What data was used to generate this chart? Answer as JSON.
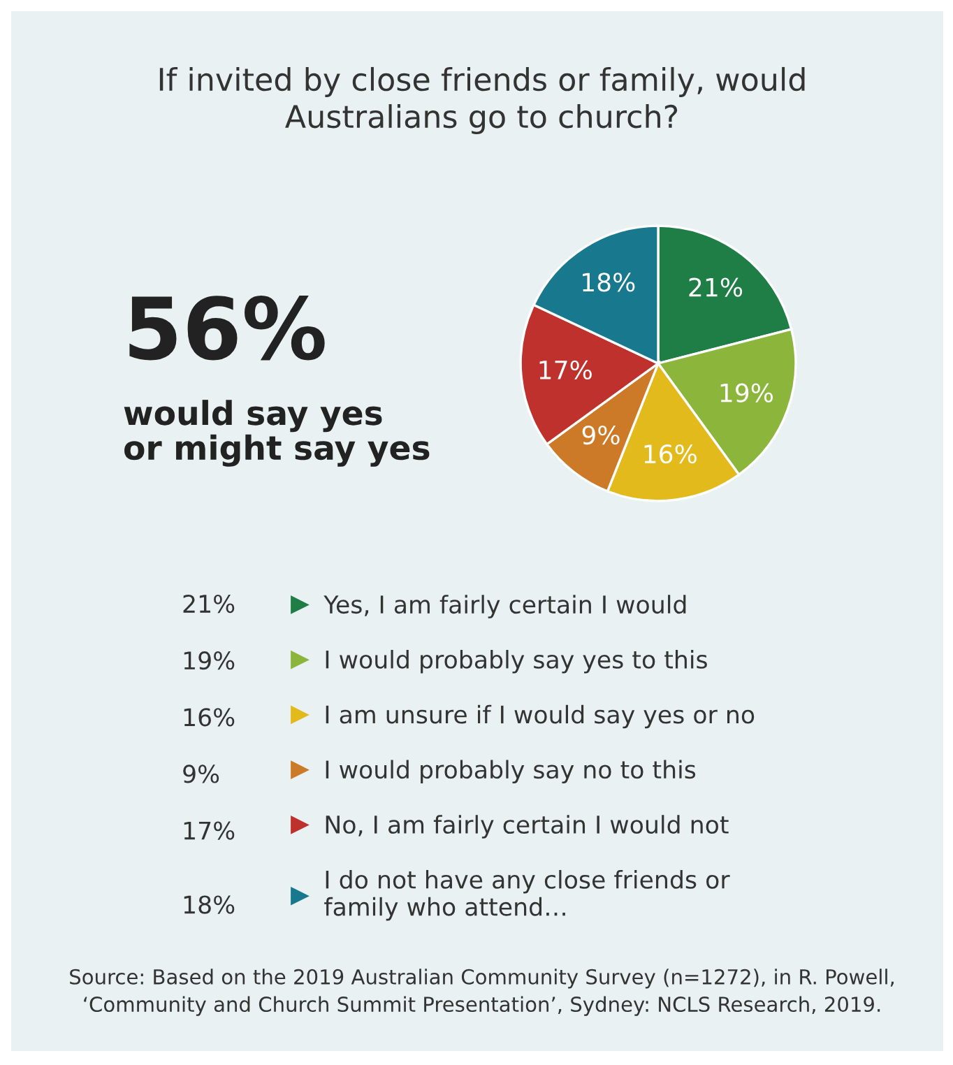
{
  "chart_data": {
    "type": "pie",
    "title": "If invited by close friends or family, would\nAustralians go to church?",
    "categories": [
      "Yes, I am fairly certain I would",
      "I would probably say yes to this",
      "I am unsure if I would say yes or no",
      "I would probably say no to this",
      "No, I am fairly certain I would not",
      "I do not have any close friends or\nfamily who attend…"
    ],
    "values": [
      21,
      19,
      16,
      9,
      17,
      18
    ],
    "value_labels": [
      "21%",
      "19%",
      "16%",
      "9%",
      "17%",
      "18%"
    ],
    "colors": [
      "#1f7d46",
      "#8bb53b",
      "#e2ba1c",
      "#cc7a27",
      "#bf312c",
      "#17788e"
    ],
    "legend": "bottom",
    "annotations": [
      "56%",
      "would say yes\nor might say yes",
      "Source: Based on the 2019 Australian Community Survey (n=1272), in R. Powell,\n‘Community and Church Summit Presentation’, Sydney: NCLS Research, 2019."
    ]
  }
}
